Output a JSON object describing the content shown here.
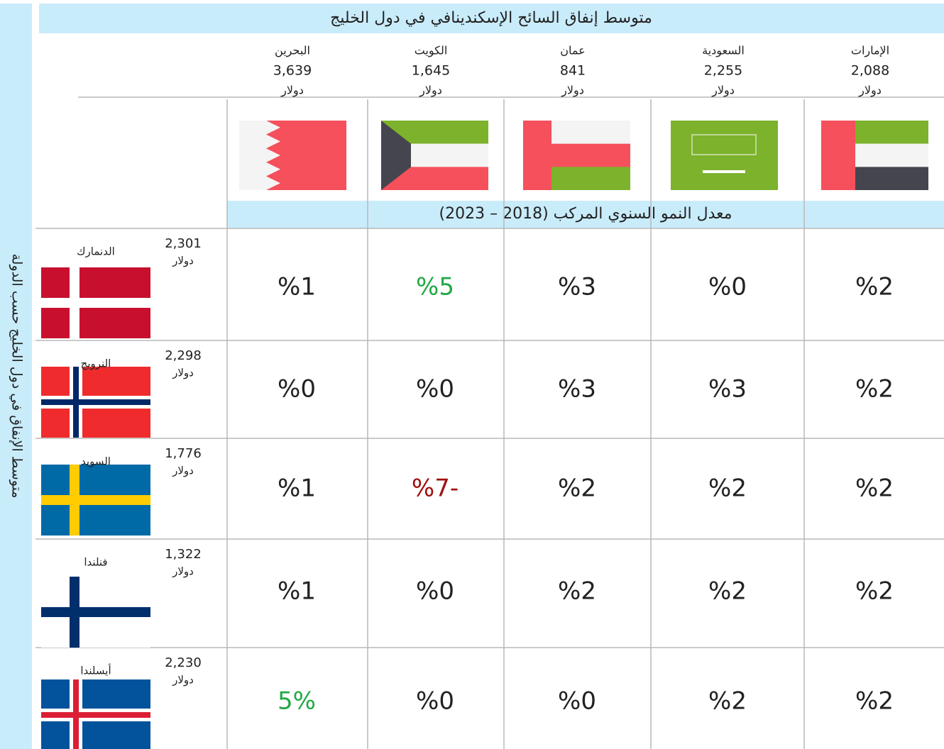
{
  "title": "متوسط إنفاق السائح الإسكندينافي في دول الخليج",
  "side_label": "متوسط  الإنفاق في دول الخليج حسب الدولة",
  "subtitle": "معدل النمو السنوي المركب (2018 – 2023)",
  "gcc": [
    {
      "name": "الإمارات",
      "spending": "2,088",
      "unit": "دولار"
    },
    {
      "name": "السعودية",
      "spending": "2,255",
      "unit": "دولار"
    },
    {
      "name": "عمان",
      "spending": "841",
      "unit": "دولار"
    },
    {
      "name": "الكويت",
      "spending": "1,645",
      "unit": "دولار"
    },
    {
      "name": "البحرين",
      "spending": "3,639",
      "unit": "دولار"
    }
  ],
  "rows": [
    {
      "name": "الدنمارك",
      "spending": "2,301",
      "unit": "دولار",
      "cells": [
        {
          "text": "%2",
          "color": "#222222"
        },
        {
          "text": "%0",
          "color": "#222222"
        },
        {
          "text": "%3",
          "color": "#222222"
        },
        {
          "text": "%5",
          "color": "#22a845"
        },
        {
          "text": "%1",
          "color": "#222222"
        }
      ]
    },
    {
      "name": "النرويج",
      "spending": "2,298",
      "unit": "دولار",
      "cells": [
        {
          "text": "%2",
          "color": "#222222"
        },
        {
          "text": "%3",
          "color": "#222222"
        },
        {
          "text": "%3",
          "color": "#222222"
        },
        {
          "text": "%0",
          "color": "#222222"
        },
        {
          "text": "%0",
          "color": "#222222"
        }
      ]
    },
    {
      "name": "السويد",
      "spending": "1,776",
      "unit": "دولار",
      "cells": [
        {
          "text": "%2",
          "color": "#222222"
        },
        {
          "text": "%2",
          "color": "#222222"
        },
        {
          "text": "%2",
          "color": "#222222"
        },
        {
          "text": "%7-",
          "color": "#a01010"
        },
        {
          "text": "%1",
          "color": "#222222"
        }
      ]
    },
    {
      "name": "فنلندا",
      "spending": "1,322",
      "unit": "دولار",
      "cells": [
        {
          "text": "%2",
          "color": "#222222"
        },
        {
          "text": "%2",
          "color": "#222222"
        },
        {
          "text": "%2",
          "color": "#222222"
        },
        {
          "text": "%0",
          "color": "#222222"
        },
        {
          "text": "%1",
          "color": "#222222"
        }
      ]
    },
    {
      "name": "أيسلندا",
      "spending": "2,230",
      "unit": "دولار",
      "cells": [
        {
          "text": "%2",
          "color": "#222222"
        },
        {
          "text": "%2",
          "color": "#222222"
        },
        {
          "text": "%0",
          "color": "#222222"
        },
        {
          "text": "%0",
          "color": "#222222"
        },
        {
          "text": "5%",
          "color": "#22a845"
        }
      ]
    }
  ]
}
